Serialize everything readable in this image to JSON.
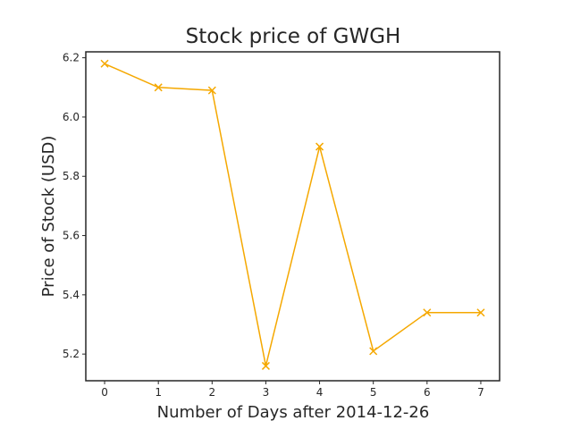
{
  "chart_data": {
    "type": "line",
    "title": "Stock price of GWGH",
    "xlabel": "Number of Days after 2014-12-26",
    "ylabel": "Price of Stock (USD)",
    "x": [
      0,
      1,
      2,
      3,
      4,
      5,
      6,
      7
    ],
    "series": [
      {
        "values": [
          6.18,
          6.1,
          6.09,
          5.16,
          5.9,
          5.21,
          5.34,
          5.34
        ]
      }
    ],
    "xlim": [
      -0.35,
      7.35
    ],
    "ylim": [
      5.11,
      6.22
    ],
    "xticks": [
      "0",
      "1",
      "2",
      "3",
      "4",
      "5",
      "6",
      "7"
    ],
    "yticks": [
      "5.2",
      "5.4",
      "5.6",
      "5.8",
      "6.0",
      "6.2"
    ],
    "grid": false,
    "marker": "x",
    "line_color": "#f5a800"
  }
}
